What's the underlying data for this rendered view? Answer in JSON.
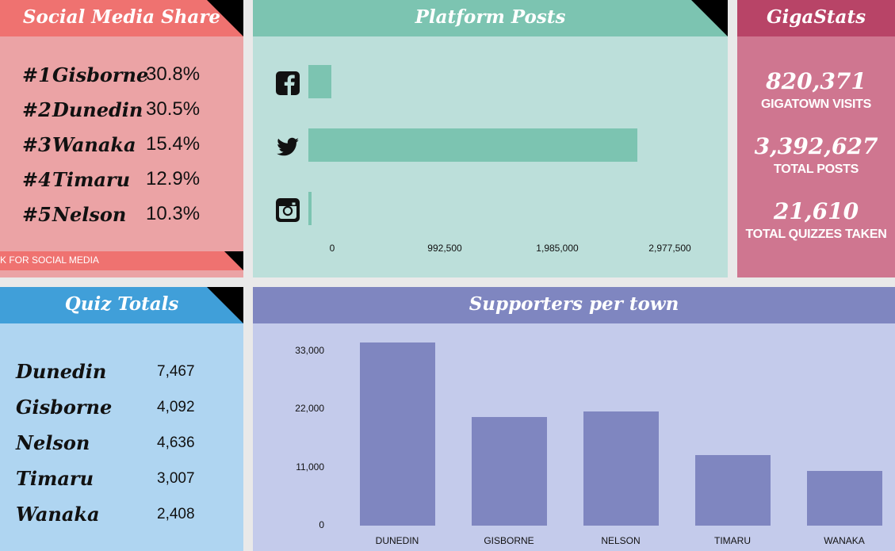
{
  "social": {
    "title": "Social Media Share",
    "rankings": [
      {
        "rank": "#1",
        "town": "Gisborne",
        "share": "30.8%"
      },
      {
        "rank": "#2",
        "town": "Dunedin",
        "share": "30.5%"
      },
      {
        "rank": "#3",
        "town": "Wanaka",
        "share": "15.4%"
      },
      {
        "rank": "#4",
        "town": "Timaru",
        "share": "12.9%"
      },
      {
        "rank": "#5",
        "town": "Nelson",
        "share": "10.3%"
      }
    ],
    "footer": "K FOR SOCIAL MEDIA",
    "header_color": "#ef7270",
    "bg_color": "#eba3a5"
  },
  "platform": {
    "title": "Platform Posts",
    "header_color": "#7cc4b1",
    "bg_color": "#bcdfda"
  },
  "gigastats": {
    "title": "GigaStats",
    "stats": [
      {
        "value": "820,371",
        "label": "GIGATOWN VISITS"
      },
      {
        "value": "3,392,627",
        "label": "TOTAL POSTS"
      },
      {
        "value": "21,610",
        "label": "TOTAL QUIZZES TAKEN"
      }
    ],
    "header_color": "#b84467",
    "bg_color": "#cf7690"
  },
  "quiz": {
    "title": "Quiz Totals",
    "rows": [
      {
        "town": "Dunedin",
        "value": "7,467"
      },
      {
        "town": "Gisborne",
        "value": "4,092"
      },
      {
        "town": "Nelson",
        "value": "4,636"
      },
      {
        "town": "Timaru",
        "value": "3,007"
      },
      {
        "town": "Wanaka",
        "value": "2,408"
      }
    ],
    "header_color": "#409fd9",
    "bg_color": "#afd5f1"
  },
  "supporters": {
    "title": "Supporters per town",
    "header_color": "#7f86c0",
    "bg_color": "#c4cbeb"
  },
  "chart_data": [
    {
      "type": "bar",
      "orientation": "horizontal",
      "categories": [
        "facebook-icon",
        "twitter-icon",
        "instagram-icon"
      ],
      "values": [
        230000,
        3300000,
        25000
      ],
      "x_ticks": [
        "0",
        "992,500",
        "1,985,000",
        "2,977,500"
      ],
      "xlim": [
        0,
        3970000
      ],
      "grid": false,
      "color": "#7cc4b1"
    },
    {
      "type": "bar",
      "categories": [
        "DUNEDIN",
        "GISBORNE",
        "NELSON",
        "TIMARU",
        "WANAKA"
      ],
      "values": [
        34600,
        20500,
        21600,
        13400,
        10400
      ],
      "y_ticks": [
        "0",
        "11,000",
        "22,000",
        "33,000"
      ],
      "ylim": [
        0,
        33000
      ],
      "grid": false,
      "color": "#7f86c0"
    }
  ]
}
